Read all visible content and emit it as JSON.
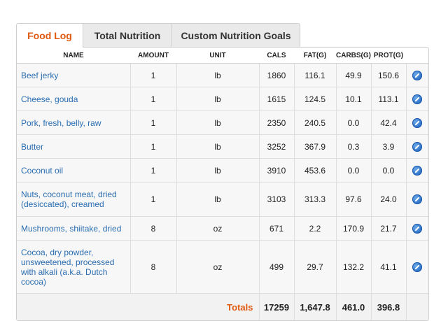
{
  "tabs": [
    {
      "label": "Food Log",
      "active": true
    },
    {
      "label": "Total Nutrition",
      "active": false
    },
    {
      "label": "Custom Nutrition Goals",
      "active": false
    }
  ],
  "columns": [
    "NAME",
    "AMOUNT",
    "UNIT",
    "CALS",
    "FAT(G)",
    "CARBS(G)",
    "PROT(G)"
  ],
  "rows": [
    {
      "name": "Beef jerky",
      "amount": "1",
      "unit": "lb",
      "cals": "1860",
      "fat": "116.1",
      "carbs": "49.9",
      "prot": "150.6"
    },
    {
      "name": "Cheese, gouda",
      "amount": "1",
      "unit": "lb",
      "cals": "1615",
      "fat": "124.5",
      "carbs": "10.1",
      "prot": "113.1"
    },
    {
      "name": "Pork, fresh, belly, raw",
      "amount": "1",
      "unit": "lb",
      "cals": "2350",
      "fat": "240.5",
      "carbs": "0.0",
      "prot": "42.4"
    },
    {
      "name": "Butter",
      "amount": "1",
      "unit": "lb",
      "cals": "3252",
      "fat": "367.9",
      "carbs": "0.3",
      "prot": "3.9"
    },
    {
      "name": "Coconut oil",
      "amount": "1",
      "unit": "lb",
      "cals": "3910",
      "fat": "453.6",
      "carbs": "0.0",
      "prot": "0.0"
    },
    {
      "name": "Nuts, coconut meat, dried (desiccated), creamed",
      "amount": "1",
      "unit": "lb",
      "cals": "3103",
      "fat": "313.3",
      "carbs": "97.6",
      "prot": "24.0"
    },
    {
      "name": "Mushrooms, shiitake, dried",
      "amount": "8",
      "unit": "oz",
      "cals": "671",
      "fat": "2.2",
      "carbs": "170.9",
      "prot": "21.7"
    },
    {
      "name": "Cocoa, dry powder, unsweetened, processed with alkali (a.k.a. Dutch cocoa)",
      "amount": "8",
      "unit": "oz",
      "cals": "499",
      "fat": "29.7",
      "carbs": "132.2",
      "prot": "41.1"
    }
  ],
  "totals": {
    "label": "Totals",
    "cals": "17259",
    "fat": "1,647.8",
    "carbs": "461.0",
    "prot": "396.8"
  },
  "icons": {
    "edit": "pencil-edit-icon"
  },
  "colors": {
    "accent": "#e0580e",
    "link": "#2a6db0",
    "edit_icon": "#2b6fc7"
  }
}
